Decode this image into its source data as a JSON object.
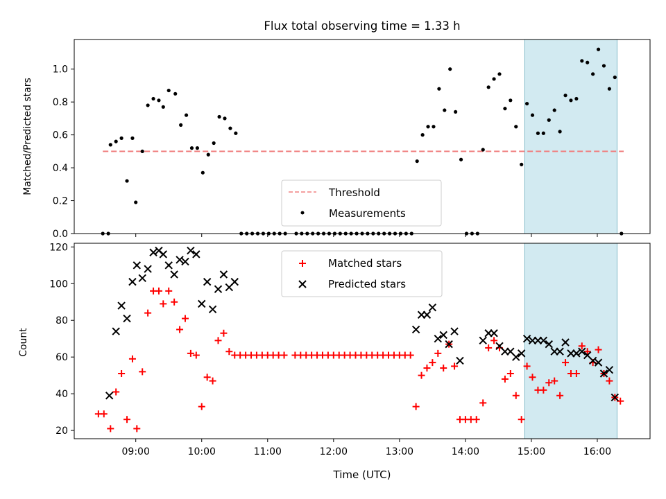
{
  "chart_data": [
    {
      "type": "scatter",
      "title": "Flux total observing time = 1.33 h",
      "xlabel": "",
      "ylabel": "Matched/Predicted stars",
      "ylim": [
        0,
        1.18
      ],
      "yticks": [
        "0.0",
        "0.2",
        "0.4",
        "0.6",
        "0.8",
        "1.0"
      ],
      "xlim": [
        "08:04",
        "16:48"
      ],
      "highlight_span": [
        "14:54",
        "16:18"
      ],
      "highlight_color": "#add8e6",
      "legend_position": "lower-center",
      "threshold": {
        "name": "Threshold",
        "value": 0.5,
        "x_range": [
          "08:30",
          "16:24"
        ],
        "color": "#f08080",
        "style": "dashed"
      },
      "series": [
        {
          "name": "Measurements",
          "color": "#000000",
          "marker": "dot",
          "points": [
            [
              "08:30",
              0
            ],
            [
              "08:35",
              0
            ],
            [
              "08:37",
              0.54
            ],
            [
              "08:42",
              0.56
            ],
            [
              "08:47",
              0.58
            ],
            [
              "08:52",
              0.32
            ],
            [
              "08:57",
              0.58
            ],
            [
              "09:00",
              0.19
            ],
            [
              "09:06",
              0.5
            ],
            [
              "09:11",
              0.78
            ],
            [
              "09:16",
              0.82
            ],
            [
              "09:21",
              0.81
            ],
            [
              "09:25",
              0.77
            ],
            [
              "09:30",
              0.87
            ],
            [
              "09:36",
              0.85
            ],
            [
              "09:41",
              0.66
            ],
            [
              "09:46",
              0.72
            ],
            [
              "09:51",
              0.52
            ],
            [
              "09:56",
              0.52
            ],
            [
              "10:01",
              0.37
            ],
            [
              "10:06",
              0.48
            ],
            [
              "10:11",
              0.55
            ],
            [
              "10:16",
              0.71
            ],
            [
              "10:21",
              0.7
            ],
            [
              "10:26",
              0.64
            ],
            [
              "10:31",
              0.61
            ],
            [
              "10:36",
              0
            ],
            [
              "10:41",
              0
            ],
            [
              "10:46",
              0
            ],
            [
              "10:51",
              0
            ],
            [
              "10:56",
              0
            ],
            [
              "11:01",
              0
            ],
            [
              "11:06",
              0
            ],
            [
              "11:11",
              0
            ],
            [
              "11:16",
              0
            ],
            [
              "11:26",
              0
            ],
            [
              "11:31",
              0
            ],
            [
              "11:36",
              0
            ],
            [
              "11:41",
              0
            ],
            [
              "11:46",
              0
            ],
            [
              "11:51",
              0
            ],
            [
              "11:56",
              0
            ],
            [
              "12:01",
              0
            ],
            [
              "12:06",
              0
            ],
            [
              "12:11",
              0
            ],
            [
              "12:16",
              0
            ],
            [
              "12:21",
              0
            ],
            [
              "12:26",
              0
            ],
            [
              "12:31",
              0
            ],
            [
              "12:36",
              0
            ],
            [
              "12:41",
              0
            ],
            [
              "12:46",
              0
            ],
            [
              "12:51",
              0
            ],
            [
              "12:56",
              0
            ],
            [
              "13:01",
              0
            ],
            [
              "13:06",
              0
            ],
            [
              "13:11",
              0
            ],
            [
              "13:16",
              0.44
            ],
            [
              "13:21",
              0.6
            ],
            [
              "13:26",
              0.65
            ],
            [
              "13:31",
              0.65
            ],
            [
              "13:36",
              0.88
            ],
            [
              "13:41",
              0.75
            ],
            [
              "13:46",
              1.0
            ],
            [
              "13:51",
              0.74
            ],
            [
              "13:56",
              0.45
            ],
            [
              "14:01",
              0
            ],
            [
              "14:06",
              0
            ],
            [
              "14:11",
              0
            ],
            [
              "14:16",
              0.51
            ],
            [
              "14:21",
              0.89
            ],
            [
              "14:26",
              0.94
            ],
            [
              "14:31",
              0.97
            ],
            [
              "14:36",
              0.76
            ],
            [
              "14:41",
              0.81
            ],
            [
              "14:46",
              0.65
            ],
            [
              "14:51",
              0.42
            ],
            [
              "14:56",
              0.79
            ],
            [
              "15:01",
              0.72
            ],
            [
              "15:06",
              0.61
            ],
            [
              "15:11",
              0.61
            ],
            [
              "15:16",
              0.69
            ],
            [
              "15:21",
              0.75
            ],
            [
              "15:26",
              0.62
            ],
            [
              "15:31",
              0.84
            ],
            [
              "15:36",
              0.81
            ],
            [
              "15:41",
              0.82
            ],
            [
              "15:46",
              1.05
            ],
            [
              "15:51",
              1.04
            ],
            [
              "15:56",
              0.97
            ],
            [
              "16:01",
              1.12
            ],
            [
              "16:06",
              1.02
            ],
            [
              "16:11",
              0.88
            ],
            [
              "16:16",
              0.95
            ],
            [
              "16:22",
              0
            ]
          ]
        }
      ]
    },
    {
      "type": "scatter",
      "xlabel": "Time (UTC)",
      "ylabel": "Count",
      "ylim": [
        15.5,
        122
      ],
      "yticks": [
        "20",
        "40",
        "60",
        "80",
        "100",
        "120"
      ],
      "xlim": [
        "08:04",
        "16:48"
      ],
      "xticks": [
        "09:00",
        "10:00",
        "11:00",
        "12:00",
        "13:00",
        "14:00",
        "15:00",
        "16:00"
      ],
      "highlight_span": [
        "14:54",
        "16:18"
      ],
      "highlight_color": "#add8e6",
      "legend_position": "upper-center",
      "series": [
        {
          "name": "Matched stars",
          "color": "#ff0000",
          "marker": "plus",
          "points": [
            [
              "08:26",
              29
            ],
            [
              "08:31",
              29
            ],
            [
              "08:37",
              21
            ],
            [
              "08:42",
              41
            ],
            [
              "08:47",
              51
            ],
            [
              "08:52",
              26
            ],
            [
              "08:57",
              59
            ],
            [
              "09:01",
              21
            ],
            [
              "09:06",
              52
            ],
            [
              "09:11",
              84
            ],
            [
              "09:16",
              96
            ],
            [
              "09:21",
              96
            ],
            [
              "09:25",
              89
            ],
            [
              "09:30",
              96
            ],
            [
              "09:35",
              90
            ],
            [
              "09:40",
              75
            ],
            [
              "09:45",
              81
            ],
            [
              "09:50",
              62
            ],
            [
              "09:55",
              61
            ],
            [
              "10:00",
              33
            ],
            [
              "10:05",
              49
            ],
            [
              "10:10",
              47
            ],
            [
              "10:15",
              69
            ],
            [
              "10:20",
              73
            ],
            [
              "10:25",
              63
            ],
            [
              "10:30",
              61
            ],
            [
              "10:35",
              61
            ],
            [
              "10:40",
              61
            ],
            [
              "10:45",
              61
            ],
            [
              "10:50",
              61
            ],
            [
              "10:55",
              61
            ],
            [
              "11:00",
              61
            ],
            [
              "11:05",
              61
            ],
            [
              "11:10",
              61
            ],
            [
              "11:15",
              61
            ],
            [
              "11:25",
              61
            ],
            [
              "11:30",
              61
            ],
            [
              "11:35",
              61
            ],
            [
              "11:40",
              61
            ],
            [
              "11:45",
              61
            ],
            [
              "11:50",
              61
            ],
            [
              "11:55",
              61
            ],
            [
              "12:00",
              61
            ],
            [
              "12:05",
              61
            ],
            [
              "12:10",
              61
            ],
            [
              "12:15",
              61
            ],
            [
              "12:20",
              61
            ],
            [
              "12:25",
              61
            ],
            [
              "12:30",
              61
            ],
            [
              "12:35",
              61
            ],
            [
              "12:40",
              61
            ],
            [
              "12:45",
              61
            ],
            [
              "12:50",
              61
            ],
            [
              "12:55",
              61
            ],
            [
              "13:00",
              61
            ],
            [
              "13:05",
              61
            ],
            [
              "13:10",
              61
            ],
            [
              "13:15",
              33
            ],
            [
              "13:20",
              50
            ],
            [
              "13:25",
              54
            ],
            [
              "13:30",
              57
            ],
            [
              "13:35",
              62
            ],
            [
              "13:40",
              54
            ],
            [
              "13:45",
              67
            ],
            [
              "13:50",
              55
            ],
            [
              "13:55",
              26
            ],
            [
              "14:00",
              26
            ],
            [
              "14:05",
              26
            ],
            [
              "14:10",
              26
            ],
            [
              "14:16",
              35
            ],
            [
              "14:21",
              65
            ],
            [
              "14:26",
              69
            ],
            [
              "14:31",
              65
            ],
            [
              "14:36",
              48
            ],
            [
              "14:41",
              51
            ],
            [
              "14:46",
              39
            ],
            [
              "14:51",
              26
            ],
            [
              "14:56",
              55
            ],
            [
              "15:01",
              49
            ],
            [
              "15:06",
              42
            ],
            [
              "15:11",
              42
            ],
            [
              "15:16",
              46
            ],
            [
              "15:21",
              47
            ],
            [
              "15:26",
              39
            ],
            [
              "15:31",
              57
            ],
            [
              "15:36",
              51
            ],
            [
              "15:41",
              51
            ],
            [
              "15:46",
              66
            ],
            [
              "15:51",
              63
            ],
            [
              "15:56",
              57
            ],
            [
              "16:01",
              64
            ],
            [
              "16:06",
              51
            ],
            [
              "16:11",
              47
            ],
            [
              "16:16",
              38
            ],
            [
              "16:21",
              36
            ]
          ]
        },
        {
          "name": "Predicted stars",
          "color": "#000000",
          "marker": "x",
          "points": [
            [
              "08:36",
              39
            ],
            [
              "08:42",
              74
            ],
            [
              "08:47",
              88
            ],
            [
              "08:52",
              81
            ],
            [
              "08:57",
              101
            ],
            [
              "09:01",
              110
            ],
            [
              "09:06",
              103
            ],
            [
              "09:11",
              108
            ],
            [
              "09:16",
              117
            ],
            [
              "09:21",
              118
            ],
            [
              "09:25",
              116
            ],
            [
              "09:30",
              110
            ],
            [
              "09:35",
              105
            ],
            [
              "09:40",
              113
            ],
            [
              "09:45",
              112
            ],
            [
              "09:50",
              118
            ],
            [
              "09:55",
              116
            ],
            [
              "10:00",
              89
            ],
            [
              "10:05",
              101
            ],
            [
              "10:10",
              86
            ],
            [
              "10:15",
              97
            ],
            [
              "10:20",
              105
            ],
            [
              "10:25",
              98
            ],
            [
              "10:30",
              101
            ],
            [
              "13:15",
              75
            ],
            [
              "13:20",
              83
            ],
            [
              "13:25",
              83
            ],
            [
              "13:30",
              87
            ],
            [
              "13:35",
              70
            ],
            [
              "13:40",
              72
            ],
            [
              "13:45",
              67
            ],
            [
              "13:50",
              74
            ],
            [
              "13:55",
              58
            ],
            [
              "14:16",
              69
            ],
            [
              "14:21",
              73
            ],
            [
              "14:26",
              73
            ],
            [
              "14:31",
              66
            ],
            [
              "14:36",
              63
            ],
            [
              "14:41",
              63
            ],
            [
              "14:46",
              60
            ],
            [
              "14:51",
              62
            ],
            [
              "14:56",
              70
            ],
            [
              "15:01",
              69
            ],
            [
              "15:06",
              69
            ],
            [
              "15:11",
              69
            ],
            [
              "15:16",
              67
            ],
            [
              "15:21",
              63
            ],
            [
              "15:26",
              63
            ],
            [
              "15:31",
              68
            ],
            [
              "15:36",
              62
            ],
            [
              "15:41",
              62
            ],
            [
              "15:46",
              63
            ],
            [
              "15:51",
              61
            ],
            [
              "15:56",
              58
            ],
            [
              "16:01",
              57
            ],
            [
              "16:06",
              51
            ],
            [
              "16:11",
              53
            ],
            [
              "16:16",
              38
            ]
          ]
        }
      ]
    }
  ]
}
